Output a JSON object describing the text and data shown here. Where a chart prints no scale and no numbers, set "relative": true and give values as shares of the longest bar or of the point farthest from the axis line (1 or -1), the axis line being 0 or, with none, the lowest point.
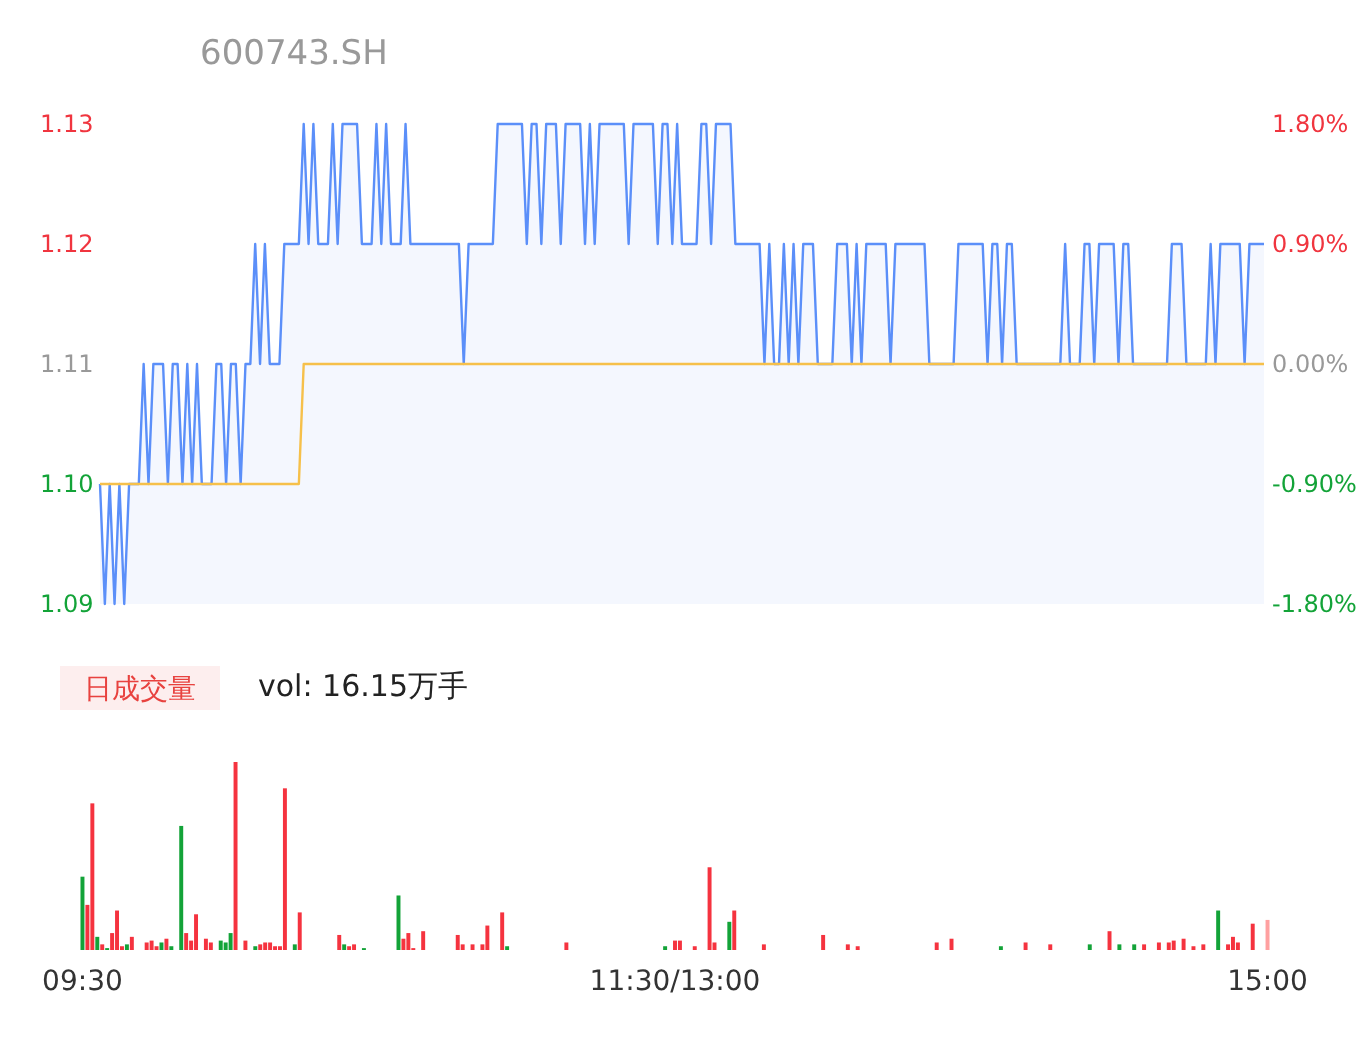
{
  "chart_data": [
    {
      "type": "line",
      "title": "600743.SH",
      "ylim": [
        1.09,
        1.13
      ],
      "yticks": [
        {
          "value": 1.09,
          "label": "1.09"
        },
        {
          "value": 1.1,
          "label": "1.10"
        },
        {
          "value": 1.11,
          "label": "1.11"
        },
        {
          "value": 1.12,
          "label": "1.12"
        },
        {
          "value": 1.13,
          "label": "1.13"
        }
      ],
      "y2lim": [
        -1.8,
        1.8
      ],
      "y2ticks": [
        {
          "value": -1.8,
          "label": "-1.80%"
        },
        {
          "value": -0.9,
          "label": "-0.90%"
        },
        {
          "value": 0,
          "label": "0.00%"
        },
        {
          "value": 0.9,
          "label": "0.90%"
        },
        {
          "value": 1.8,
          "label": "1.80%"
        }
      ],
      "tick_labels": "y",
      "categories": [
        null,
        null,
        null,
        null,
        null,
        null,
        null,
        null,
        null,
        null,
        null,
        null,
        null,
        null,
        null,
        null,
        null,
        null,
        null,
        null,
        null,
        null,
        null,
        null,
        null,
        null,
        null,
        null,
        null,
        null,
        null,
        null,
        null,
        null,
        null,
        null,
        null,
        null,
        null,
        null,
        null,
        null,
        null,
        null,
        null,
        null,
        null,
        null,
        null,
        null,
        null,
        null,
        null,
        null,
        null,
        null,
        null,
        null,
        null,
        null,
        null,
        null,
        null,
        null,
        null,
        null,
        null,
        null,
        null,
        null,
        null,
        null,
        null,
        null,
        null,
        null,
        null,
        null,
        null,
        null,
        null,
        null,
        null,
        null,
        null,
        null,
        null,
        null,
        null,
        null,
        null,
        null,
        null,
        null,
        null,
        null,
        null,
        null,
        null,
        null,
        null,
        null,
        null,
        null,
        null,
        null,
        null,
        null,
        null,
        null,
        null,
        null,
        null,
        null,
        null,
        null,
        null,
        null,
        null,
        null,
        null,
        null,
        null,
        null,
        null,
        null,
        null,
        null,
        null,
        null,
        null,
        null,
        null,
        null,
        null,
        null,
        null,
        null,
        null,
        null,
        null,
        null,
        null,
        null,
        null,
        null,
        null,
        null,
        null,
        null,
        null,
        null,
        null,
        null,
        null,
        null,
        null,
        null,
        null,
        null,
        null,
        null,
        null,
        null,
        null,
        null,
        null,
        null,
        null,
        null,
        null,
        null,
        null,
        null,
        null,
        null,
        null,
        null,
        null,
        null,
        null,
        null,
        null,
        null,
        null,
        null,
        null,
        null,
        null,
        null,
        null,
        null,
        null,
        null,
        null,
        null,
        null,
        null,
        null,
        null,
        null,
        null,
        null,
        null,
        null,
        null,
        null,
        null,
        null,
        null,
        null,
        null,
        null,
        null,
        null,
        null,
        null,
        null,
        null,
        null,
        null,
        null,
        null,
        null,
        null,
        null,
        null,
        null,
        null,
        null,
        null,
        null,
        null,
        null,
        null,
        null,
        null,
        null,
        null,
        null,
        null
      ],
      "series": [
        {
          "type": "area",
          "color": "#5b8ff9",
          "values": [
            1.1,
            1.09,
            1.1,
            1.09,
            1.1,
            1.09,
            1.1,
            1.1,
            1.1,
            1.11,
            1.1,
            1.11,
            1.11,
            1.11,
            1.1,
            1.11,
            1.11,
            1.1,
            1.11,
            1.1,
            1.11,
            1.1,
            1.1,
            1.1,
            1.11,
            1.11,
            1.1,
            1.11,
            1.11,
            1.1,
            1.11,
            1.11,
            1.12,
            1.11,
            1.12,
            1.11,
            1.11,
            1.11,
            1.12,
            1.12,
            1.12,
            1.12,
            1.13,
            1.12,
            1.13,
            1.12,
            1.12,
            1.12,
            1.13,
            1.12,
            1.13,
            1.13,
            1.13,
            1.13,
            1.12,
            1.12,
            1.12,
            1.13,
            1.12,
            1.13,
            1.12,
            1.12,
            1.12,
            1.13,
            1.12,
            1.12,
            1.12,
            1.12,
            1.12,
            1.12,
            1.12,
            1.12,
            1.12,
            1.12,
            1.12,
            1.11,
            1.12,
            1.12,
            1.12,
            1.12,
            1.12,
            1.12,
            1.13,
            1.13,
            1.13,
            1.13,
            1.13,
            1.13,
            1.12,
            1.13,
            1.13,
            1.12,
            1.13,
            1.13,
            1.13,
            1.12,
            1.13,
            1.13,
            1.13,
            1.13,
            1.12,
            1.13,
            1.12,
            1.13,
            1.13,
            1.13,
            1.13,
            1.13,
            1.13,
            1.12,
            1.13,
            1.13,
            1.13,
            1.13,
            1.13,
            1.12,
            1.13,
            1.13,
            1.12,
            1.13,
            1.12,
            1.12,
            1.12,
            1.12,
            1.13,
            1.13,
            1.12,
            1.13,
            1.13,
            1.13,
            1.13,
            1.12,
            1.12,
            1.12,
            1.12,
            1.12,
            1.12,
            1.11,
            1.12,
            1.11,
            1.11,
            1.12,
            1.11,
            1.12,
            1.11,
            1.12,
            1.12,
            1.12,
            1.11,
            1.11,
            1.11,
            1.11,
            1.12,
            1.12,
            1.12,
            1.11,
            1.12,
            1.11,
            1.12,
            1.12,
            1.12,
            1.12,
            1.12,
            1.11,
            1.12,
            1.12,
            1.12,
            1.12,
            1.12,
            1.12,
            1.12,
            1.11,
            1.11,
            1.11,
            1.11,
            1.11,
            1.11,
            1.12,
            1.12,
            1.12,
            1.12,
            1.12,
            1.12,
            1.11,
            1.12,
            1.12,
            1.11,
            1.12,
            1.12,
            1.11,
            1.11,
            1.11,
            1.11,
            1.11,
            1.11,
            1.11,
            1.11,
            1.11,
            1.11,
            1.12,
            1.11,
            1.11,
            1.11,
            1.12,
            1.12,
            1.11,
            1.12,
            1.12,
            1.12,
            1.12,
            1.11,
            1.12,
            1.12,
            1.11,
            1.11,
            1.11,
            1.11,
            1.11,
            1.11,
            1.11,
            1.11,
            1.12,
            1.12,
            1.12,
            1.11,
            1.11,
            1.11,
            1.11,
            1.11,
            1.12,
            1.11,
            1.12,
            1.12,
            1.12,
            1.12,
            1.12,
            1.11,
            1.12,
            1.12,
            1.12,
            1.12
          ]
        },
        {
          "type": "line",
          "color": "#f6c04a",
          "values": [
            1.1,
            1.1,
            1.1,
            1.1,
            1.1,
            1.1,
            1.1,
            1.1,
            1.1,
            1.1,
            1.1,
            1.1,
            1.1,
            1.1,
            1.1,
            1.1,
            1.1,
            1.1,
            1.1,
            1.1,
            1.1,
            1.1,
            1.1,
            1.1,
            1.1,
            1.1,
            1.1,
            1.1,
            1.1,
            1.1,
            1.1,
            1.1,
            1.1,
            1.1,
            1.1,
            1.1,
            1.1,
            1.1,
            1.1,
            1.1,
            1.1,
            1.1,
            1.11,
            1.11,
            1.11,
            1.11,
            1.11,
            1.11,
            1.11,
            1.11,
            1.11,
            1.11,
            1.11,
            1.11,
            1.11,
            1.11,
            1.11,
            1.11,
            1.11,
            1.11,
            1.11,
            1.11,
            1.11,
            1.11,
            1.11,
            1.11,
            1.11,
            1.11,
            1.11,
            1.11,
            1.11,
            1.11,
            1.11,
            1.11,
            1.11,
            1.11,
            1.11,
            1.11,
            1.11,
            1.11,
            1.11,
            1.11,
            1.11,
            1.11,
            1.11,
            1.11,
            1.11,
            1.11,
            1.11,
            1.11,
            1.11,
            1.11,
            1.11,
            1.11,
            1.11,
            1.11,
            1.11,
            1.11,
            1.11,
            1.11,
            1.11,
            1.11,
            1.11,
            1.11,
            1.11,
            1.11,
            1.11,
            1.11,
            1.11,
            1.11,
            1.11,
            1.11,
            1.11,
            1.11,
            1.11,
            1.11,
            1.11,
            1.11,
            1.11,
            1.11,
            1.11,
            1.11,
            1.11,
            1.11,
            1.11,
            1.11,
            1.11,
            1.11,
            1.11,
            1.11,
            1.11,
            1.11,
            1.11,
            1.11,
            1.11,
            1.11,
            1.11,
            1.11,
            1.11,
            1.11,
            1.11,
            1.11,
            1.11,
            1.11,
            1.11,
            1.11,
            1.11,
            1.11,
            1.11,
            1.11,
            1.11,
            1.11,
            1.11,
            1.11,
            1.11,
            1.11,
            1.11,
            1.11,
            1.11,
            1.11,
            1.11,
            1.11,
            1.11,
            1.11,
            1.11,
            1.11,
            1.11,
            1.11,
            1.11,
            1.11,
            1.11,
            1.11,
            1.11,
            1.11,
            1.11,
            1.11,
            1.11,
            1.11,
            1.11,
            1.11,
            1.11,
            1.11,
            1.11,
            1.11,
            1.11,
            1.11,
            1.11,
            1.11,
            1.11,
            1.11,
            1.11,
            1.11,
            1.11,
            1.11,
            1.11,
            1.11,
            1.11,
            1.11,
            1.11,
            1.11,
            1.11,
            1.11,
            1.11,
            1.11,
            1.11,
            1.11,
            1.11,
            1.11,
            1.11,
            1.11,
            1.11,
            1.11,
            1.11,
            1.11,
            1.11,
            1.11,
            1.11,
            1.11,
            1.11,
            1.11,
            1.11,
            1.11,
            1.11,
            1.11,
            1.11,
            1.11,
            1.11,
            1.11,
            1.11,
            1.11,
            1.11,
            1.11,
            1.11,
            1.11,
            1.11,
            1.11,
            1.11,
            1.11,
            1.11,
            1.11,
            1.11
          ]
        }
      ]
    },
    {
      "type": "bar",
      "title": "日成交量",
      "subtitle": "vol: 16.15万手",
      "relative": true,
      "categories": [
        "09:30",
        null,
        null,
        null,
        null,
        null,
        null,
        null,
        null,
        null,
        null,
        null,
        null,
        null,
        null,
        null,
        null,
        null,
        null,
        null,
        null,
        null,
        null,
        null,
        null,
        null,
        null,
        null,
        null,
        null,
        null,
        null,
        null,
        null,
        null,
        null,
        null,
        null,
        null,
        null,
        null,
        null,
        null,
        null,
        null,
        null,
        null,
        null,
        null,
        null,
        null,
        null,
        null,
        null,
        null,
        null,
        null,
        null,
        null,
        null,
        null,
        null,
        null,
        null,
        null,
        null,
        null,
        null,
        null,
        null,
        null,
        null,
        null,
        null,
        null,
        null,
        null,
        null,
        null,
        null,
        null,
        null,
        null,
        null,
        null,
        null,
        null,
        null,
        null,
        null,
        null,
        null,
        null,
        null,
        null,
        null,
        null,
        null,
        null,
        null,
        null,
        null,
        null,
        null,
        null,
        null,
        null,
        null,
        null,
        null,
        null,
        null,
        null,
        null,
        null,
        null,
        null,
        null,
        null,
        null,
        "11:30/13:00",
        null,
        null,
        null,
        null,
        null,
        null,
        null,
        null,
        null,
        null,
        null,
        null,
        null,
        null,
        null,
        null,
        null,
        null,
        null,
        null,
        null,
        null,
        null,
        null,
        null,
        null,
        null,
        null,
        null,
        null,
        null,
        null,
        null,
        null,
        null,
        null,
        null,
        null,
        null,
        null,
        null,
        null,
        null,
        null,
        null,
        null,
        null,
        null,
        null,
        null,
        null,
        null,
        null,
        null,
        null,
        null,
        null,
        null,
        null,
        null,
        null,
        null,
        null,
        null,
        null,
        null,
        null,
        null,
        null,
        null,
        null,
        null,
        null,
        null,
        null,
        null,
        null,
        null,
        null,
        null,
        null,
        null,
        null,
        null,
        null,
        null,
        null,
        null,
        null,
        null,
        null,
        null,
        null,
        null,
        null,
        null,
        null,
        null,
        null,
        null,
        null,
        null,
        null,
        null,
        null,
        null,
        null,
        null,
        null,
        null,
        null,
        null,
        null,
        null,
        null,
        null,
        null,
        null,
        null,
        "15:00"
      ],
      "values": [
        0.39,
        0.24,
        0.78,
        0.07,
        0.03,
        0.01,
        0.09,
        0.21,
        0.02,
        0.03,
        0.07,
        null,
        null,
        0.04,
        0.05,
        0.02,
        0.04,
        0.06,
        0.02,
        null,
        0.66,
        0.09,
        0.05,
        0.19,
        null,
        0.06,
        0.04,
        null,
        0.05,
        0.04,
        0.09,
        1,
        null,
        0.05,
        null,
        0.02,
        0.03,
        0.04,
        0.04,
        0.02,
        0.02,
        0.86,
        null,
        0.03,
        0.2,
        null,
        null,
        null,
        null,
        null,
        null,
        null,
        0.08,
        0.03,
        0.02,
        0.03,
        null,
        0.01,
        null,
        null,
        null,
        null,
        null,
        null,
        0.29,
        0.06,
        0.09,
        0.01,
        null,
        0.1,
        null,
        null,
        null,
        null,
        null,
        null,
        0.08,
        0.03,
        null,
        0.03,
        null,
        0.03,
        0.13,
        null,
        null,
        0.2,
        0.02,
        null,
        null,
        null,
        null,
        null,
        null,
        null,
        null,
        null,
        null,
        null,
        0.04,
        null,
        null,
        null,
        null,
        null,
        null,
        null,
        null,
        null,
        null,
        null,
        null,
        null,
        null,
        null,
        null,
        null,
        null,
        null,
        0.02,
        null,
        0.05,
        0.05,
        null,
        null,
        0.02,
        null,
        null,
        0.44,
        0.04,
        null,
        null,
        0.15,
        0.21,
        null,
        null,
        null,
        null,
        null,
        0.03,
        null,
        null,
        null,
        null,
        null,
        null,
        null,
        null,
        null,
        null,
        null,
        0.08,
        null,
        null,
        null,
        null,
        0.03,
        null,
        0.02,
        null,
        null,
        null,
        null,
        null,
        null,
        null,
        null,
        null,
        null,
        null,
        null,
        null,
        null,
        null,
        0.04,
        null,
        null,
        0.06,
        null,
        null,
        null,
        null,
        null,
        null,
        null,
        null,
        null,
        0.02,
        null,
        null,
        null,
        null,
        0.04,
        null,
        null,
        null,
        null,
        0.03,
        null,
        null,
        null,
        null,
        null,
        null,
        null,
        0.03,
        null,
        null,
        null,
        0.1,
        null,
        0.03,
        null,
        null,
        0.03,
        null,
        0.03,
        null,
        null,
        0.04,
        null,
        0.04,
        0.05,
        null,
        0.06,
        null,
        0.02,
        null,
        0.03,
        null,
        null,
        0.21,
        null,
        0.03,
        0.07,
        0.04,
        null,
        null,
        0.14,
        null,
        null,
        0.16
      ],
      "colors": [
        "#13a338",
        "#f5333f",
        "#f5333f",
        "#13a338",
        "#f5333f",
        "#13a338",
        "#f5333f",
        "#f5333f",
        "#f5333f",
        "#13a338",
        "#f5333f",
        null,
        null,
        "#f5333f",
        "#f5333f",
        "#f5333f",
        "#13a338",
        "#f5333f",
        "#13a338",
        null,
        "#13a338",
        "#f5333f",
        "#f5333f",
        "#f5333f",
        null,
        "#f5333f",
        "#f5333f",
        null,
        "#13a338",
        "#13a338",
        "#13a338",
        "#f5333f",
        null,
        "#f5333f",
        null,
        "#13a338",
        "#f5333f",
        "#f5333f",
        "#f5333f",
        "#f5333f",
        "#f5333f",
        "#f5333f",
        null,
        "#13a338",
        "#f5333f",
        null,
        null,
        null,
        null,
        null,
        null,
        null,
        "#f5333f",
        "#13a338",
        "#f5333f",
        "#f5333f",
        null,
        "#13a338",
        null,
        null,
        null,
        null,
        null,
        null,
        "#13a338",
        "#f5333f",
        "#f5333f",
        "#f5333f",
        null,
        "#f5333f",
        null,
        null,
        null,
        null,
        null,
        null,
        "#f5333f",
        "#f5333f",
        null,
        "#f5333f",
        null,
        "#f5333f",
        "#f5333f",
        null,
        null,
        "#f5333f",
        "#13a338",
        null,
        null,
        null,
        null,
        null,
        null,
        null,
        null,
        null,
        null,
        null,
        "#f5333f",
        null,
        null,
        null,
        null,
        null,
        null,
        null,
        null,
        null,
        null,
        null,
        null,
        null,
        null,
        null,
        null,
        null,
        null,
        null,
        "#13a338",
        null,
        "#f5333f",
        "#f5333f",
        null,
        null,
        "#f5333f",
        null,
        null,
        "#f5333f",
        "#f5333f",
        null,
        null,
        "#13a338",
        "#f5333f",
        null,
        null,
        null,
        null,
        null,
        "#f5333f",
        null,
        null,
        null,
        null,
        null,
        null,
        null,
        null,
        null,
        null,
        null,
        "#f5333f",
        null,
        null,
        null,
        null,
        "#f5333f",
        null,
        "#f5333f",
        null,
        null,
        null,
        null,
        null,
        null,
        null,
        null,
        null,
        null,
        null,
        null,
        null,
        null,
        null,
        "#f5333f",
        null,
        null,
        "#f5333f",
        null,
        null,
        null,
        null,
        null,
        null,
        null,
        null,
        null,
        "#13a338",
        null,
        null,
        null,
        null,
        "#f5333f",
        null,
        null,
        null,
        null,
        "#f5333f",
        null,
        null,
        null,
        null,
        null,
        null,
        null,
        "#13a338",
        null,
        null,
        null,
        "#f5333f",
        null,
        "#13a338",
        null,
        null,
        "#13a338",
        null,
        "#f5333f",
        null,
        null,
        "#f5333f",
        null,
        "#f5333f",
        "#f5333f",
        null,
        "#f5333f",
        null,
        "#f5333f",
        null,
        "#f5333f",
        null,
        null,
        "#13a338",
        null,
        "#f5333f",
        "#f5333f",
        "#f5333f",
        null,
        null,
        "#f5333f",
        null,
        null,
        "#ffa0a0"
      ]
    }
  ]
}
